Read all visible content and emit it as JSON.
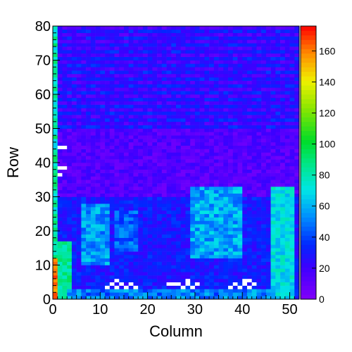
{
  "chart_data": {
    "type": "heatmap",
    "title": "",
    "xlabel": "Column",
    "ylabel": "Row",
    "xlim": [
      0,
      52
    ],
    "ylim": [
      0,
      80
    ],
    "x_ticks": [
      "0",
      "10",
      "20",
      "30",
      "40",
      "50"
    ],
    "y_ticks": [
      "0",
      "10",
      "20",
      "30",
      "40",
      "50",
      "60",
      "70",
      "80"
    ],
    "colorbar": {
      "range": [
        0,
        176
      ],
      "ticks": [
        "0",
        "20",
        "40",
        "60",
        "80",
        "100",
        "120",
        "140",
        "160"
      ],
      "palette": "rainbow (violet-blue-cyan-green-yellow-red)"
    },
    "bins": {
      "nx": 52,
      "ny": 80
    },
    "regions": [
      {
        "desc": "upper band rows 50-80",
        "cols": [
          0,
          52
        ],
        "rows": [
          50,
          80
        ],
        "level": 20
      },
      {
        "desc": "middle band rows 30-50",
        "cols": [
          0,
          52
        ],
        "rows": [
          30,
          50
        ],
        "level": 12
      },
      {
        "desc": "low area rows 0-30",
        "cols": [
          0,
          52
        ],
        "rows": [
          0,
          30
        ],
        "level": 30
      },
      {
        "desc": "bright block right",
        "cols": [
          29,
          40
        ],
        "rows": [
          14,
          24
        ],
        "level": 62
      },
      {
        "desc": "bright block left",
        "cols": [
          6,
          12
        ],
        "rows": [
          15,
          28
        ],
        "level": 60
      },
      {
        "desc": "left edge green strip",
        "cols": [
          1,
          4
        ],
        "rows": [
          0,
          17
        ],
        "level": 85
      },
      {
        "desc": "right edge green strip",
        "cols": [
          46,
          51
        ],
        "rows": [
          0,
          33
        ],
        "level": 75
      },
      {
        "desc": "empty white cells bottom",
        "cols": [
          10,
          42
        ],
        "rows": [
          2,
          6
        ],
        "level": 0
      }
    ]
  }
}
